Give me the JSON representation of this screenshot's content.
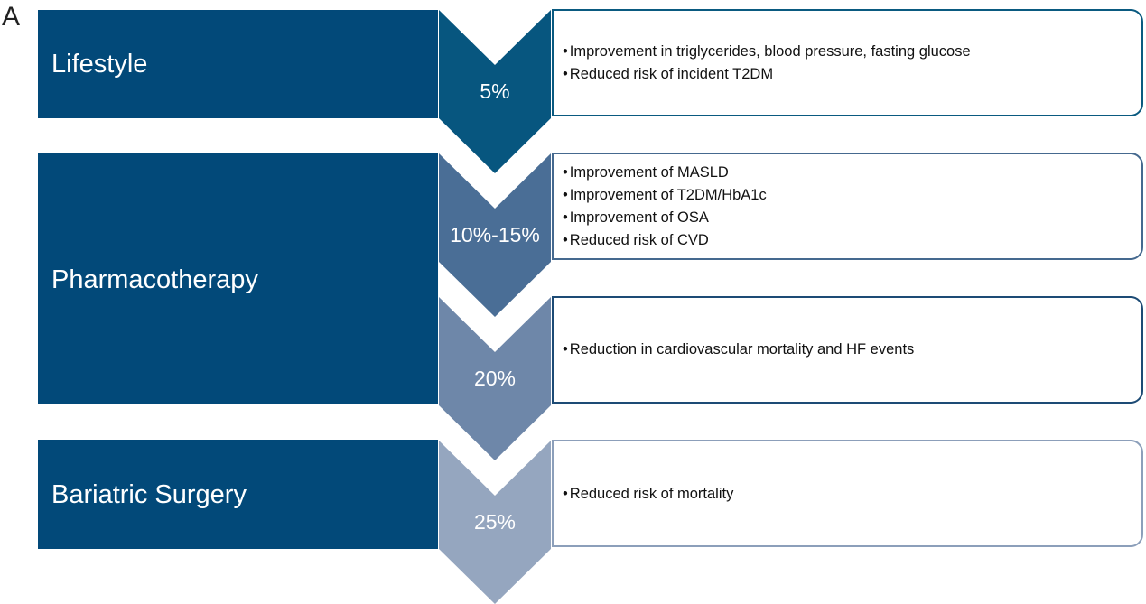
{
  "panel_label": "A",
  "colors": {
    "bar": "#024979",
    "level_fill": [
      "#07567f",
      "#4a6e96",
      "#6e87a9",
      "#95a6bf"
    ],
    "box_border": [
      "#0a5a80",
      "#45698f",
      "#1d4b75",
      "#8c9fba"
    ]
  },
  "interventions": [
    {
      "label": "Lifestyle"
    },
    {
      "label": "Pharmacotherapy"
    },
    {
      "label": "Bariatric Surgery"
    }
  ],
  "levels": [
    {
      "weight_loss": "5%",
      "outcomes": [
        "Improvement in triglycerides, blood pressure, fasting glucose",
        "Reduced risk of incident T2DM"
      ]
    },
    {
      "weight_loss": "10%-15%",
      "outcomes": [
        "Improvement of MASLD",
        "Improvement of T2DM/HbA1c",
        "Improvement of OSA",
        "Reduced risk of CVD"
      ]
    },
    {
      "weight_loss": "20%",
      "outcomes": [
        "Reduction in cardiovascular mortality and HF events"
      ]
    },
    {
      "weight_loss": "25%",
      "outcomes": [
        "Reduced risk of mortality"
      ]
    }
  ]
}
